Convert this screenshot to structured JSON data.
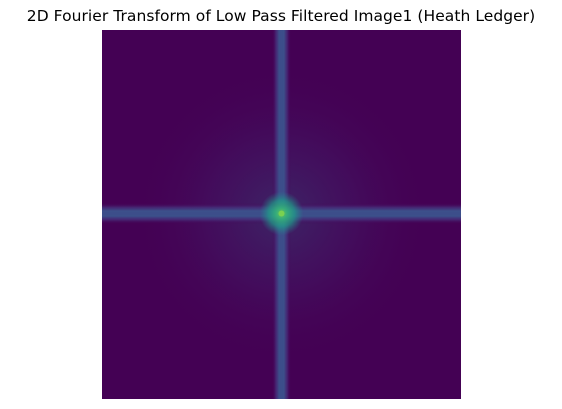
{
  "figure": {
    "title": "2D Fourier Transform of Low Pass Filtered Image1 (Heath Ledger)"
  },
  "image": {
    "colormap": "viridis",
    "axes_visible": false,
    "background_color": "#440154",
    "band_color": "#3b528b",
    "band_edge_color": "#482878",
    "peak_color": "#2fb47c",
    "peak_core_color": "#6ece58"
  }
}
